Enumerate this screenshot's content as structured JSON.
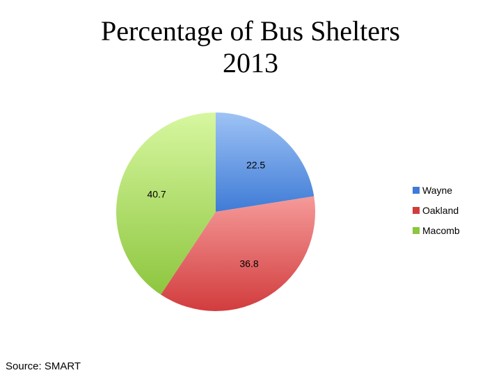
{
  "chart_data": {
    "type": "pie",
    "title_line1": "Percentage of Bus Shelters",
    "title_line2": "2013",
    "slices": [
      {
        "label": "Wayne",
        "value": 22.5,
        "color_light": "#9ec3f5",
        "color_dark": "#3f7bd6"
      },
      {
        "label": "Oakland",
        "value": 36.8,
        "color_light": "#f59a99",
        "color_dark": "#d23c3d"
      },
      {
        "label": "Macomb",
        "value": 40.7,
        "color_light": "#d7f7a0",
        "color_dark": "#8dc63f"
      }
    ],
    "legend_placement": "right",
    "data_labels": true
  },
  "source": "Source: SMART"
}
